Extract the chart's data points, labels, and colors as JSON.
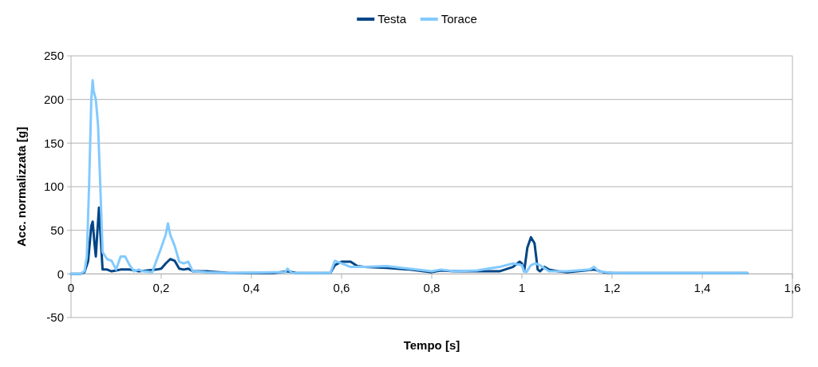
{
  "chart_data": {
    "type": "line",
    "xlabel": "Tempo [s]",
    "ylabel": "Acc. normalizzata [g]",
    "xlim": [
      0,
      1.6
    ],
    "xticks": [
      0,
      {
        "value": 0.2,
        "label": "0,2"
      },
      {
        "value": 0.4,
        "label": "0,4"
      },
      {
        "value": 0.6,
        "label": "0,6"
      },
      {
        "value": 0.8,
        "label": "0,8"
      },
      1,
      {
        "value": 1.2,
        "label": "1,2"
      },
      {
        "value": 1.4,
        "label": "1,4"
      },
      {
        "value": 1.6,
        "label": "1,6"
      }
    ],
    "ylim": [
      -50,
      250
    ],
    "yticks": [
      -50,
      0,
      50,
      100,
      150,
      200,
      250
    ],
    "grid": "y",
    "legend": "top",
    "marker": "none",
    "series": [
      {
        "name": "Testa",
        "color": "#004586",
        "x": [
          0,
          0.02,
          0.03,
          0.038,
          0.045,
          0.048,
          0.052,
          0.055,
          0.058,
          0.062,
          0.066,
          0.07,
          0.08,
          0.09,
          0.1,
          0.11,
          0.13,
          0.15,
          0.17,
          0.19,
          0.2,
          0.21,
          0.22,
          0.23,
          0.24,
          0.25,
          0.26,
          0.27,
          0.3,
          0.35,
          0.45,
          0.48,
          0.5,
          0.575,
          0.585,
          0.6,
          0.62,
          0.635,
          0.65,
          0.7,
          0.75,
          0.8,
          0.82,
          0.85,
          0.9,
          0.95,
          0.98,
          0.995,
          1.0,
          1.005,
          1.012,
          1.02,
          1.028,
          1.035,
          1.04,
          1.05,
          1.06,
          1.08,
          1.1,
          1.14,
          1.16,
          1.18,
          1.2,
          1.3,
          1.4,
          1.5
        ],
        "values": [
          0,
          0,
          2,
          15,
          55,
          60,
          35,
          20,
          45,
          76,
          40,
          5,
          5,
          3,
          4,
          5,
          5,
          3,
          4,
          5,
          6,
          12,
          17,
          15,
          6,
          5,
          6,
          3,
          3,
          1,
          1,
          3,
          1,
          1,
          10,
          14,
          14,
          9,
          8,
          7,
          5,
          2,
          4,
          3,
          3,
          3,
          8,
          14,
          12,
          3,
          30,
          42,
          35,
          5,
          3,
          8,
          5,
          3,
          2,
          4,
          5,
          2,
          1,
          1,
          1,
          1
        ]
      },
      {
        "name": "Torace",
        "color": "#83caff",
        "x": [
          0,
          0.02,
          0.03,
          0.035,
          0.04,
          0.045,
          0.048,
          0.05,
          0.055,
          0.06,
          0.065,
          0.07,
          0.08,
          0.09,
          0.1,
          0.11,
          0.12,
          0.13,
          0.14,
          0.15,
          0.16,
          0.18,
          0.2,
          0.21,
          0.215,
          0.22,
          0.23,
          0.24,
          0.25,
          0.26,
          0.27,
          0.3,
          0.35,
          0.45,
          0.475,
          0.48,
          0.49,
          0.575,
          0.585,
          0.6,
          0.62,
          0.65,
          0.7,
          0.75,
          0.8,
          0.82,
          0.85,
          0.9,
          0.95,
          0.98,
          1.0,
          1.005,
          1.01,
          1.02,
          1.03,
          1.04,
          1.06,
          1.1,
          1.15,
          1.16,
          1.17,
          1.2,
          1.5
        ],
        "values": [
          0,
          0,
          3,
          20,
          100,
          200,
          222,
          210,
          200,
          170,
          100,
          25,
          17,
          15,
          5,
          20,
          20,
          10,
          3,
          5,
          3,
          2,
          30,
          45,
          58,
          45,
          32,
          14,
          12,
          14,
          3,
          2,
          1,
          2,
          2,
          6,
          1,
          1,
          15,
          12,
          8,
          8,
          9,
          6,
          3,
          5,
          3,
          4,
          8,
          12,
          10,
          3,
          2,
          10,
          12,
          10,
          3,
          3,
          5,
          8,
          3,
          1,
          1
        ]
      }
    ]
  }
}
